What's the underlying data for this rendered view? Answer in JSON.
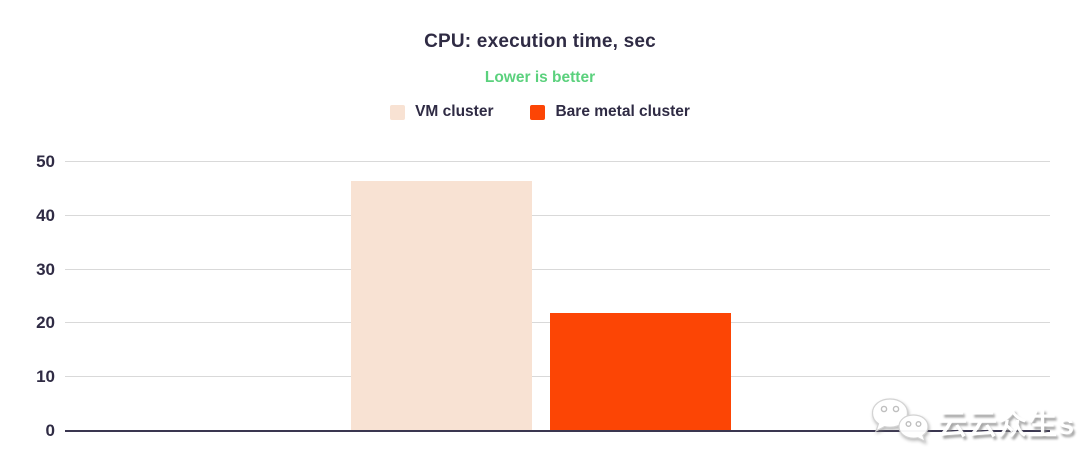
{
  "chart_data": {
    "type": "bar",
    "title": "CPU: execution time, sec",
    "subtitle": "Lower is better",
    "categories": [
      "VM cluster",
      "Bare metal cluster"
    ],
    "values": [
      46.5,
      22
    ],
    "colors": [
      "#f8e2d3",
      "#fc4505"
    ],
    "xlabel": "",
    "ylabel": "",
    "ylim": [
      0,
      50
    ],
    "yticks": [
      0,
      10,
      20,
      30,
      40,
      50
    ],
    "grid": "horizontal",
    "legend_position": "top",
    "x_axis_labels_visible": false
  },
  "legend": {
    "items": [
      {
        "label": "VM cluster",
        "color": "#f8e2d3"
      },
      {
        "label": "Bare metal cluster",
        "color": "#fc4505"
      }
    ]
  },
  "watermark": {
    "text": "云云众生s",
    "icon": "wechat-chat-bubbles-icon"
  },
  "colors": {
    "title_text": "#2f2b44",
    "subtitle_green": "#5bd17d",
    "gridline": "#d9d9d9",
    "axis_line": "#3a3650",
    "background": "#ffffff"
  }
}
